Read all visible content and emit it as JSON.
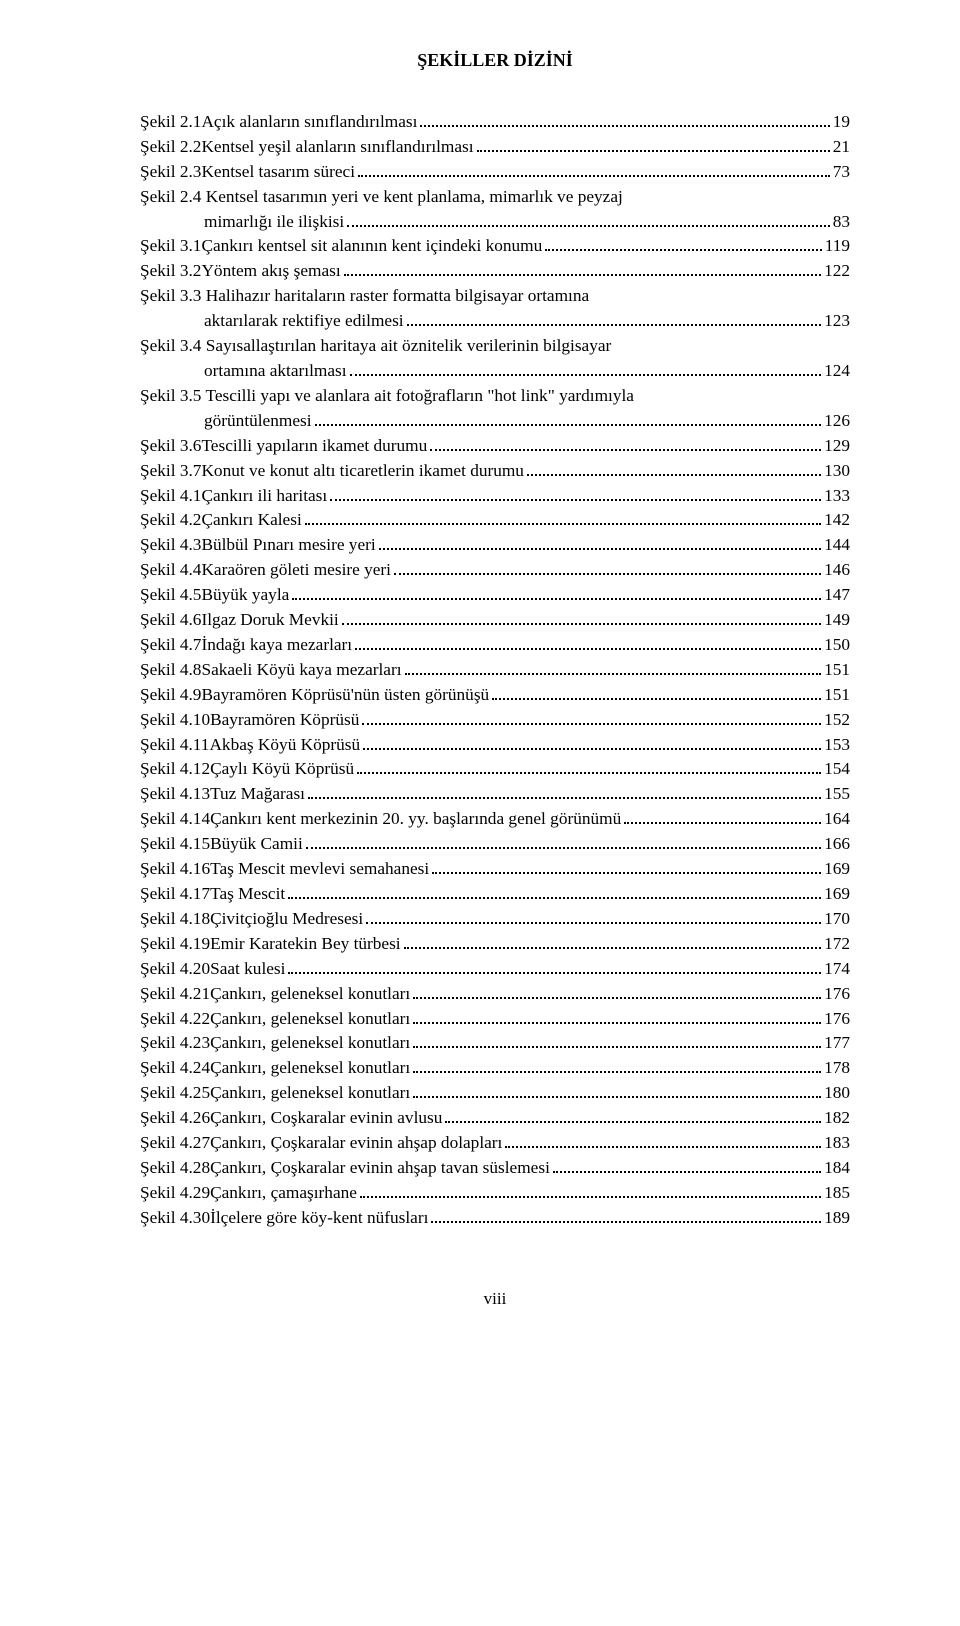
{
  "title": "ŞEKİLLER DİZİNİ",
  "page_number": "viii",
  "entries": [
    {
      "label": "Şekil 2.1",
      "desc": "Açık alanların sınıflandırılması",
      "page": "19"
    },
    {
      "label": "Şekil 2.2",
      "desc": "Kentsel yeşil alanların sınıflandırılması",
      "page": "21"
    },
    {
      "label": "Şekil 2.3",
      "desc": "Kentsel tasarım süreci",
      "page": "73"
    },
    {
      "label": "Şekil 2.4",
      "desc": "Kentsel tasarımın yeri ve kent planlama, mimarlık ve peyzaj",
      "desc2": "mimarlığı ile ilişkisi",
      "page": "83"
    },
    {
      "label": "Şekil 3.1",
      "desc": "Çankırı kentsel sit alanının kent içindeki konumu",
      "page": "119"
    },
    {
      "label": "Şekil 3.2",
      "desc": "Yöntem akış şeması",
      "page": "122"
    },
    {
      "label": "Şekil 3.3",
      "desc": "Halihazır haritaların raster formatta bilgisayar ortamına",
      "desc2": "aktarılarak rektifiye edilmesi",
      "page": "123"
    },
    {
      "label": "Şekil 3.4",
      "desc": "Sayısallaştırılan haritaya ait öznitelik verilerinin bilgisayar",
      "desc2": "ortamına aktarılması",
      "page": "124"
    },
    {
      "label": "Şekil 3.5",
      "desc": "Tescilli yapı ve alanlara ait fotoğrafların \"hot link\" yardımıyla",
      "desc2": "görüntülenmesi",
      "page": "126"
    },
    {
      "label": "Şekil 3.6",
      "desc": "Tescilli yapıların ikamet durumu",
      "page": "129"
    },
    {
      "label": "Şekil 3.7",
      "desc": "Konut ve konut altı ticaretlerin ikamet durumu",
      "page": "130"
    },
    {
      "label": "Şekil 4.1",
      "desc": "Çankırı ili haritası",
      "page": "133"
    },
    {
      "label": "Şekil 4.2",
      "desc": "Çankırı Kalesi",
      "page": "142"
    },
    {
      "label": "Şekil 4.3",
      "desc": "Bülbül Pınarı mesire yeri",
      "page": "144"
    },
    {
      "label": "Şekil 4.4",
      "desc": "Karaören göleti mesire yeri",
      "page": "146"
    },
    {
      "label": "Şekil 4.5",
      "desc": "Büyük yayla",
      "page": "147"
    },
    {
      "label": "Şekil 4.6",
      "desc": "Ilgaz Doruk Mevkii",
      "page": "149"
    },
    {
      "label": "Şekil 4.7",
      "desc": "İndağı kaya mezarları",
      "page": "150"
    },
    {
      "label": "Şekil 4.8",
      "desc": "Sakaeli Köyü kaya mezarları",
      "page": "151"
    },
    {
      "label": "Şekil 4.9",
      "desc": "Bayramören Köprüsü'nün üsten görünüşü",
      "page": "151"
    },
    {
      "label": "Şekil 4.10",
      "desc": "Bayramören Köprüsü",
      "page": "152"
    },
    {
      "label": "Şekil 4.11",
      "desc": "Akbaş Köyü Köprüsü",
      "page": "153"
    },
    {
      "label": "Şekil 4.12",
      "desc": "Çaylı Köyü Köprüsü",
      "page": "154"
    },
    {
      "label": "Şekil 4.13",
      "desc": "Tuz Mağarası",
      "page": "155"
    },
    {
      "label": "Şekil 4.14",
      "desc": "Çankırı kent merkezinin 20. yy. başlarında genel görünümü",
      "page": "164"
    },
    {
      "label": "Şekil 4.15",
      "desc": "Büyük Camii",
      "page": "166"
    },
    {
      "label": "Şekil 4.16",
      "desc": "Taş Mescit mevlevi semahanesi",
      "page": "169"
    },
    {
      "label": "Şekil 4.17",
      "desc": "Taş Mescit",
      "page": "169"
    },
    {
      "label": "Şekil 4.18",
      "desc": "Çivitçioğlu Medresesi",
      "page": "170"
    },
    {
      "label": "Şekil 4.19",
      "desc": "Emir Karatekin Bey türbesi",
      "page": "172"
    },
    {
      "label": "Şekil 4.20",
      "desc": "Saat kulesi",
      "page": "174"
    },
    {
      "label": "Şekil 4.21",
      "desc": "Çankırı, geleneksel konutları",
      "page": "176"
    },
    {
      "label": "Şekil 4.22",
      "desc": "Çankırı, geleneksel konutları",
      "page": "176"
    },
    {
      "label": "Şekil 4.23",
      "desc": "Çankırı, geleneksel konutları",
      "page": "177"
    },
    {
      "label": "Şekil 4.24",
      "desc": "Çankırı, geleneksel konutları",
      "page": "178"
    },
    {
      "label": "Şekil 4.25",
      "desc": "Çankırı, geleneksel konutları",
      "page": "180"
    },
    {
      "label": "Şekil 4.26",
      "desc": "Çankırı, Coşkaralar evinin avlusu",
      "page": "182"
    },
    {
      "label": "Şekil 4.27",
      "desc": "Çankırı, Çoşkaralar evinin ahşap dolapları",
      "page": "183"
    },
    {
      "label": "Şekil 4.28",
      "desc": "Çankırı, Çoşkaralar evinin ahşap tavan süslemesi",
      "page": "184"
    },
    {
      "label": "Şekil 4.29",
      "desc": "Çankırı, çamaşırhane",
      "page": "185"
    },
    {
      "label": "Şekil 4.30",
      "desc": "İlçelere göre köy-kent nüfusları",
      "page": "189"
    }
  ]
}
